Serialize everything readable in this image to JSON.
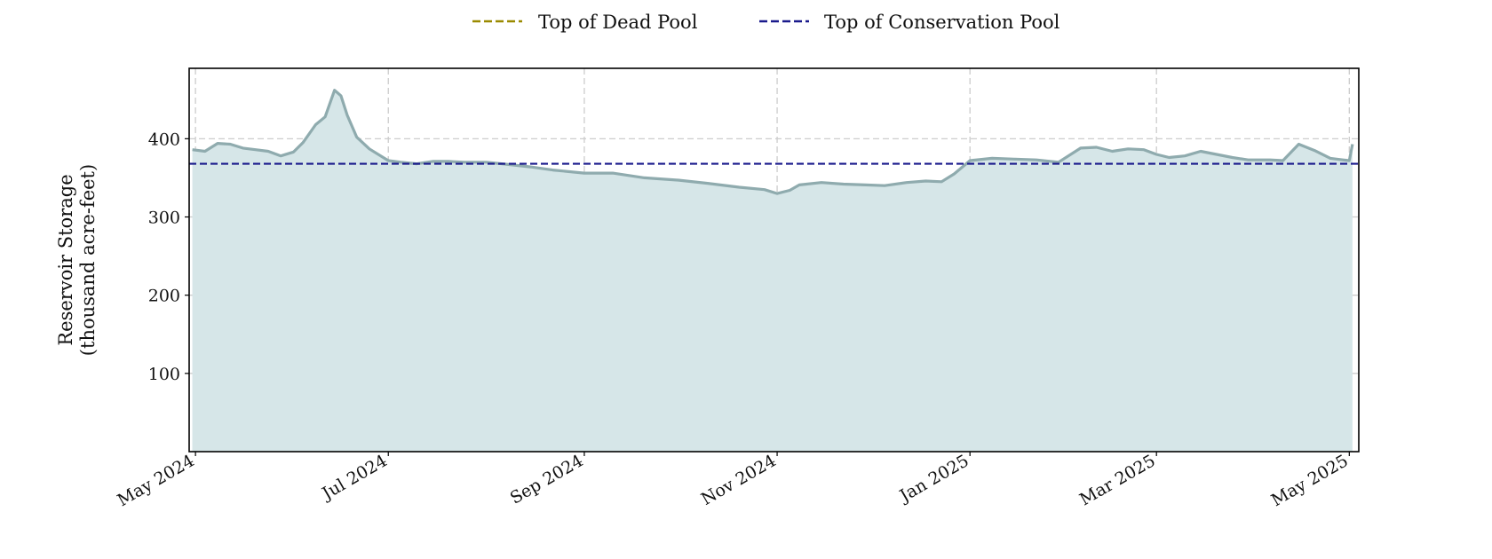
{
  "chart_data": {
    "type": "area",
    "title": "",
    "xlabel": "",
    "ylabel": "Reservoir Storage\n(thousand acre-feet)",
    "ylim": [
      0,
      490
    ],
    "xlim": [
      "2024-04-29",
      "2025-05-04"
    ],
    "yticks": [
      100,
      200,
      300,
      400
    ],
    "xticks": [
      {
        "date": "2024-05-01",
        "label": "May 2024"
      },
      {
        "date": "2024-07-01",
        "label": "Jul 2024"
      },
      {
        "date": "2024-09-01",
        "label": "Sep 2024"
      },
      {
        "date": "2024-11-01",
        "label": "Nov 2024"
      },
      {
        "date": "2025-01-01",
        "label": "Jan 2025"
      },
      {
        "date": "2025-03-01",
        "label": "Mar 2025"
      },
      {
        "date": "2025-05-01",
        "label": "May 2025"
      }
    ],
    "grid": true,
    "legend": {
      "placement": "top-center",
      "entries": [
        {
          "label": "Top of Dead Pool",
          "color": "#9a8a00",
          "style": "dashed"
        },
        {
          "label": "Top of Conservation Pool",
          "color": "#1a1a8c",
          "style": "dashed"
        }
      ]
    },
    "reference_lines": [
      {
        "label": "Top of Conservation Pool",
        "value": 368,
        "color": "#1a1a8c",
        "style": "dashed"
      }
    ],
    "series": [
      {
        "line_color": "#8fabae",
        "fill_color": "#d6e6e8",
        "x": [
          "2024-04-30",
          "2024-05-04",
          "2024-05-08",
          "2024-05-12",
          "2024-05-16",
          "2024-05-20",
          "2024-05-24",
          "2024-05-28",
          "2024-06-01",
          "2024-06-04",
          "2024-06-08",
          "2024-06-11",
          "2024-06-14",
          "2024-06-16",
          "2024-06-18",
          "2024-06-21",
          "2024-06-25",
          "2024-07-01",
          "2024-07-05",
          "2024-07-10",
          "2024-07-15",
          "2024-07-20",
          "2024-07-25",
          "2024-08-01",
          "2024-08-08",
          "2024-08-15",
          "2024-08-22",
          "2024-09-01",
          "2024-09-10",
          "2024-09-20",
          "2024-10-01",
          "2024-10-10",
          "2024-10-20",
          "2024-10-28",
          "2024-11-01",
          "2024-11-05",
          "2024-11-08",
          "2024-11-15",
          "2024-11-22",
          "2024-11-29",
          "2024-12-05",
          "2024-12-12",
          "2024-12-18",
          "2024-12-23",
          "2024-12-27",
          "2025-01-01",
          "2025-01-08",
          "2025-01-15",
          "2025-01-22",
          "2025-01-29",
          "2025-02-05",
          "2025-02-10",
          "2025-02-15",
          "2025-02-20",
          "2025-02-25",
          "2025-03-01",
          "2025-03-05",
          "2025-03-10",
          "2025-03-15",
          "2025-03-20",
          "2025-03-25",
          "2025-03-30",
          "2025-04-03",
          "2025-04-06",
          "2025-04-10",
          "2025-04-15",
          "2025-04-20",
          "2025-04-25",
          "2025-04-29",
          "2025-05-01",
          "2025-05-02"
        ],
        "values": [
          386,
          384,
          394,
          393,
          388,
          386,
          384,
          378,
          383,
          395,
          418,
          428,
          462,
          455,
          430,
          402,
          387,
          372,
          370,
          368,
          371,
          371,
          370,
          370,
          367,
          364,
          360,
          356,
          356,
          350,
          347,
          343,
          338,
          335,
          330,
          334,
          341,
          344,
          342,
          341,
          340,
          344,
          346,
          345,
          355,
          372,
          375,
          374,
          373,
          370,
          388,
          389,
          384,
          387,
          386,
          380,
          376,
          378,
          384,
          380,
          376,
          373,
          373,
          373,
          372,
          393,
          385,
          375,
          373,
          372,
          393
        ]
      }
    ]
  }
}
